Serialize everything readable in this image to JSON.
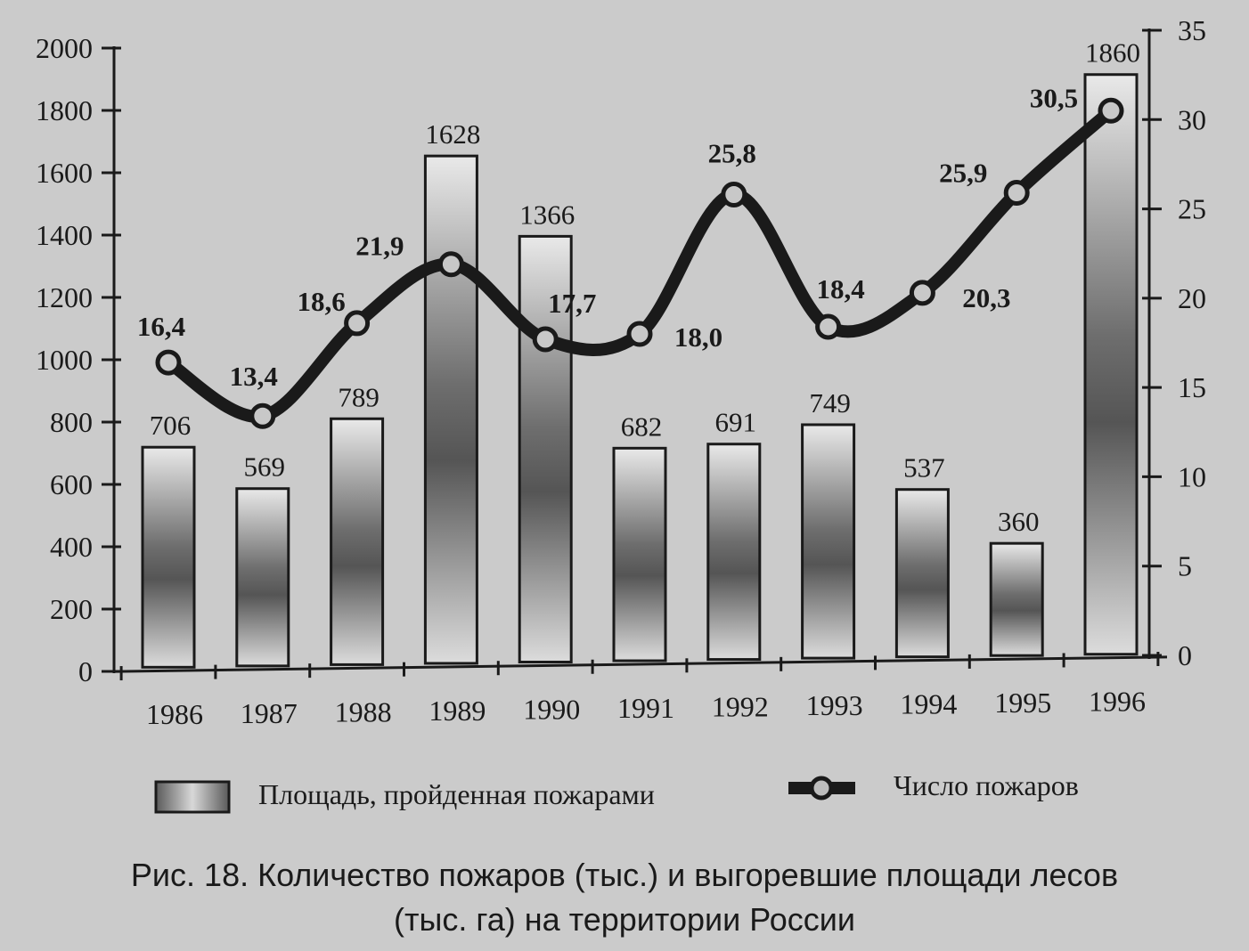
{
  "chart_data": {
    "type": "bar",
    "title": "Рис. 18. Количество пожаров (тыс.) и выгоревшие площади лесов (тыс. га) на территории России",
    "caption_line1": "Рис. 18. Количество пожаров (тыс.) и выгоревшие площади лесов",
    "caption_line2": "(тыс. га) на территории России",
    "categories": [
      "1986",
      "1987",
      "1988",
      "1989",
      "1990",
      "1991",
      "1992",
      "1993",
      "1994",
      "1995",
      "1996"
    ],
    "series": [
      {
        "name": "Площадь, пройденная пожарами",
        "type": "bar",
        "axis": "left",
        "values": [
          706,
          569,
          789,
          1628,
          1366,
          682,
          691,
          749,
          537,
          360,
          1860
        ],
        "labels": [
          "706",
          "569",
          "789",
          "1628",
          "1366",
          "682",
          "691",
          "749",
          "537",
          "360",
          "1860"
        ]
      },
      {
        "name": "Число пожаров",
        "type": "line",
        "axis": "right",
        "values": [
          16.4,
          13.4,
          18.6,
          21.9,
          17.7,
          18.0,
          25.8,
          18.4,
          20.3,
          25.9,
          30.5
        ],
        "labels": [
          "16,4",
          "13,4",
          "18,6",
          "21,9",
          "17,7",
          "18,0",
          "25,8",
          "18,4",
          "20,3",
          "25,9",
          "30,5"
        ]
      }
    ],
    "y_left": {
      "ylim": [
        0,
        2000
      ],
      "ticks": [
        "0",
        "200",
        "400",
        "600",
        "800",
        "1000",
        "1200",
        "1400",
        "1600",
        "1800",
        "2000"
      ]
    },
    "y_right": {
      "ylim": [
        0,
        35
      ],
      "ticks": [
        "0",
        "5",
        "10",
        "15",
        "20",
        "25",
        "30",
        "35"
      ]
    },
    "grid": false,
    "legend_position": "bottom"
  }
}
